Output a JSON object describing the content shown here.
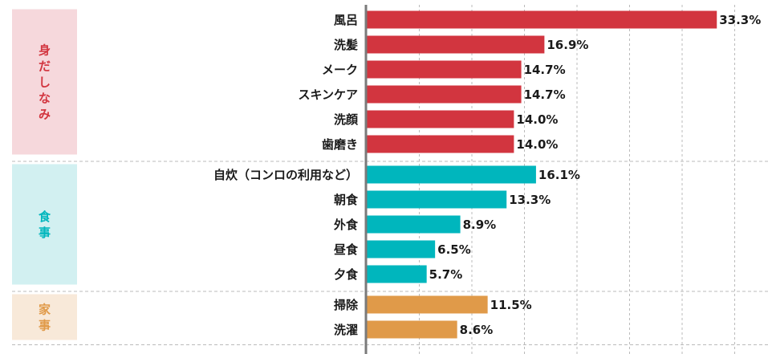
{
  "chart_data": {
    "type": "bar",
    "orientation": "horizontal",
    "title": "",
    "xlabel": "",
    "ylabel": "",
    "xlim": [
      0,
      35
    ],
    "grid": true,
    "groups": [
      {
        "name": "身だしなみ",
        "color": "#d2353f",
        "bg_color": "#f6d8dc",
        "categories": [
          "風呂",
          "洗髪",
          "メーク",
          "スキンケア",
          "洗顔",
          "歯磨き"
        ],
        "values": [
          33.3,
          16.9,
          14.7,
          14.7,
          14.0,
          14.0
        ],
        "value_labels": [
          "33.3%",
          "16.9%",
          "14.7%",
          "14.7%",
          "14.0%",
          "14.0%"
        ]
      },
      {
        "name": "食事",
        "color": "#00b6bd",
        "bg_color": "#d2f0f1",
        "categories": [
          "自炊（コンロの利用など）",
          "朝食",
          "外食",
          "昼食",
          "夕食"
        ],
        "values": [
          16.1,
          13.3,
          8.9,
          6.5,
          5.7
        ],
        "value_labels": [
          "16.1%",
          "13.3%",
          "8.9%",
          "6.5%",
          "5.7%"
        ]
      },
      {
        "name": "家事",
        "color": "#e09a49",
        "bg_color": "#f8e9d9",
        "categories": [
          "掃除",
          "洗濯"
        ],
        "values": [
          11.5,
          8.6
        ],
        "value_labels": [
          "11.5%",
          "8.6%"
        ]
      }
    ]
  }
}
